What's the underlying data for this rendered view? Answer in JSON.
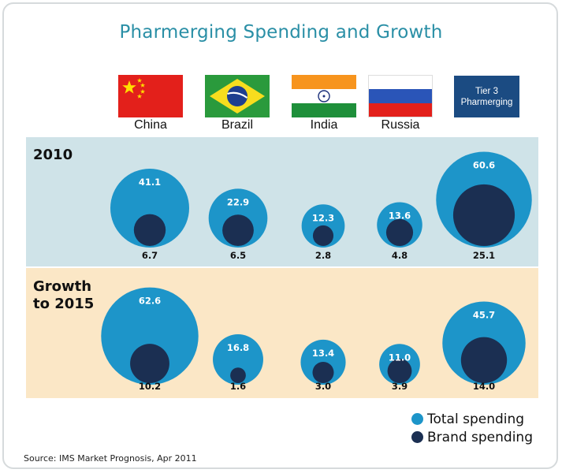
{
  "title": "Pharmerging Spending and Growth",
  "countries": [
    {
      "label": "China",
      "flag": "china-flag"
    },
    {
      "label": "Brazil",
      "flag": "brazil-flag"
    },
    {
      "label": "India",
      "flag": "india-flag"
    },
    {
      "label": "Russia",
      "flag": "russia-flag"
    }
  ],
  "tier3": {
    "line1": "Tier 3",
    "line2": "Pharmerging"
  },
  "rows": [
    {
      "label_line1": "2010",
      "label_line2": ""
    },
    {
      "label_line1": "Growth",
      "label_line2": "to 2015"
    }
  ],
  "legend": {
    "total": {
      "label": "Total spending",
      "color": "#1d95c9"
    },
    "brand": {
      "label": "Brand spending",
      "color": "#1b2f52"
    }
  },
  "source": "Source: IMS Market Prognosis, Apr 2011",
  "chart_data": {
    "type": "bubble",
    "title": "Pharmerging Spending and Growth",
    "categories": [
      "China",
      "Brazil",
      "India",
      "Russia",
      "Tier 3 Pharmerging"
    ],
    "groups": [
      "2010",
      "Growth to 2015"
    ],
    "series": [
      {
        "name": "Total spending",
        "group": "2010",
        "values": [
          41.1,
          22.9,
          12.3,
          13.6,
          60.6
        ]
      },
      {
        "name": "Brand spending",
        "group": "2010",
        "values": [
          6.7,
          6.5,
          2.8,
          4.8,
          25.1
        ]
      },
      {
        "name": "Total spending",
        "group": "Growth to 2015",
        "values": [
          62.6,
          16.8,
          13.4,
          11.0,
          45.7
        ]
      },
      {
        "name": "Brand spending",
        "group": "Growth to 2015",
        "values": [
          10.2,
          1.6,
          3.0,
          3.9,
          14.0
        ]
      }
    ],
    "value_labels": [
      [
        "41.1",
        "22.9",
        "12.3",
        "13.6",
        "60.6"
      ],
      [
        "6.7",
        "6.5",
        "2.8",
        "4.8",
        "25.1"
      ],
      [
        "62.6",
        "16.8",
        "13.4",
        "11.0",
        "45.7"
      ],
      [
        "10.2",
        "1.6",
        "3.0",
        "3.9",
        "14.0"
      ]
    ],
    "legend_position": "bottom-right",
    "grid": false
  }
}
